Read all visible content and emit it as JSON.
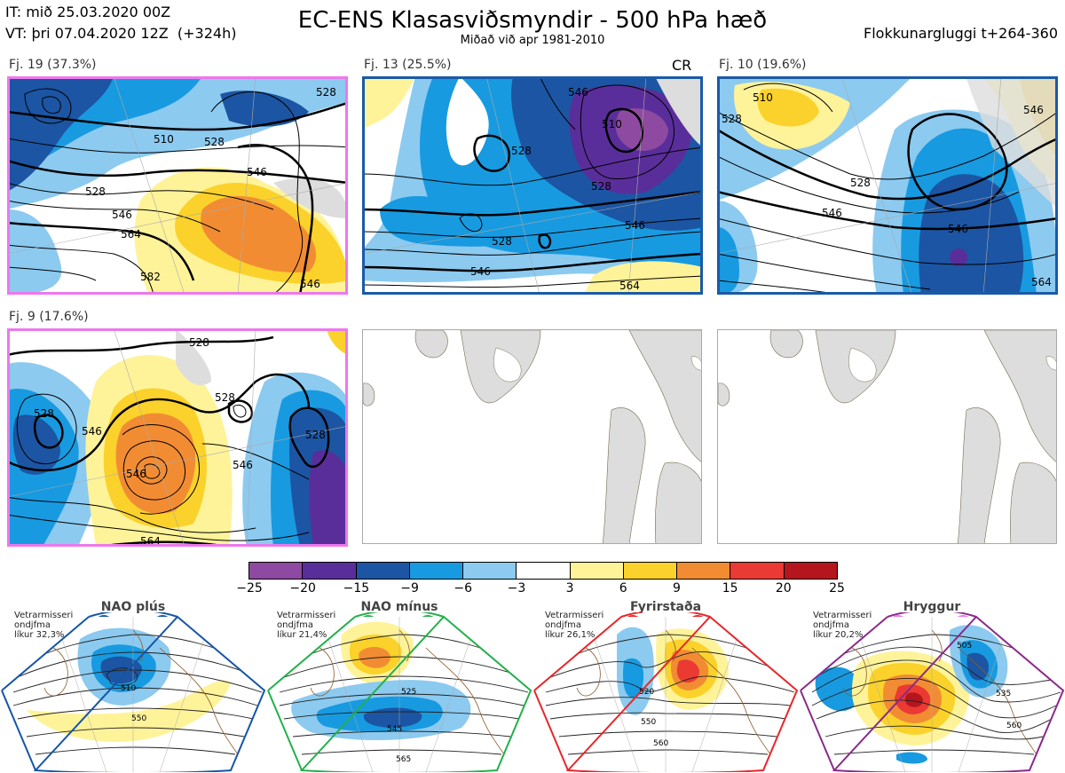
{
  "header": {
    "title": "EC-ENS Klasasviðsmyndir - 500 hPa hæð",
    "subtitle": "Miðað við apr 1981-2010",
    "it_line": "IT: mið 25.03.2020 00Z",
    "vt_line": "VT: þri 07.04.2020 12Z  (+324h)",
    "window_label": "Flokkunargluggi t+264-360"
  },
  "panels": [
    {
      "label": "Fj. 19 (37.3%)",
      "frame_color": "#ee77ee",
      "tag": ""
    },
    {
      "label": "Fj. 13 (25.5%)",
      "frame_color": "#1a5aa8",
      "tag": "CR"
    },
    {
      "label": "Fj. 10 (19.6%)",
      "frame_color": "#1a5aa8",
      "tag": ""
    },
    {
      "label": "Fj. 9 (17.6%)",
      "frame_color": "#ee77ee",
      "tag": ""
    }
  ],
  "colorbar": {
    "ticks": [
      "−25",
      "−20",
      "−15",
      "−9",
      "−6",
      "−3",
      "3",
      "6",
      "9",
      "15",
      "20",
      "25"
    ],
    "colors": [
      "#8e4aa0",
      "#5a2e9a",
      "#1c55a3",
      "#189ae0",
      "#8ccaf0",
      "#ffffff",
      "#fff39a",
      "#fbd22b",
      "#f28c33",
      "#ea3a33",
      "#b5151c"
    ]
  },
  "regimes": [
    {
      "name": "NAO plús",
      "note_line1": "Vetrarmisseri",
      "note_line2": "ondjfma",
      "note_line3": "líkur 32,3%",
      "dot_color": "#1555a8",
      "frame_color": "#1555a8",
      "contours": [
        "510",
        "550"
      ]
    },
    {
      "name": "NAO mínus",
      "note_line1": "Vetrarmisseri",
      "note_line2": "ondjfma",
      "note_line3": "líkur 21,4%",
      "dot_color": "#22b04a",
      "frame_color": "#22b04a",
      "contours": [
        "525",
        "545",
        "565"
      ]
    },
    {
      "name": "Fyrirstaða",
      "note_line1": "Vetrarmisseri",
      "note_line2": "ondjfma",
      "note_line3": "líkur 26,1%",
      "dot_color": "#e8262a",
      "frame_color": "#e8262a",
      "contours": [
        "520",
        "550",
        "560"
      ]
    },
    {
      "name": "Hryggur",
      "note_line1": "Vetrarmisseri",
      "note_line2": "ondjfma",
      "note_line3": "líkur 20,2%",
      "dot_color": "#ee77ee",
      "frame_color": "#8a2a8a",
      "contours": [
        "505",
        "535",
        "560"
      ]
    }
  ],
  "panel_contour_labels": {
    "p1": [
      "528",
      "510",
      "528",
      "546",
      "528",
      "546",
      "564",
      "582",
      "546"
    ],
    "p2": [
      "546",
      "510",
      "528",
      "528",
      "528",
      "546",
      "546",
      "564"
    ],
    "p3": [
      "510",
      "528",
      "528",
      "546",
      "546",
      "546",
      "564"
    ],
    "p4": [
      "528",
      "528",
      "546",
      "528",
      "546",
      "546",
      "564",
      "528"
    ]
  }
}
